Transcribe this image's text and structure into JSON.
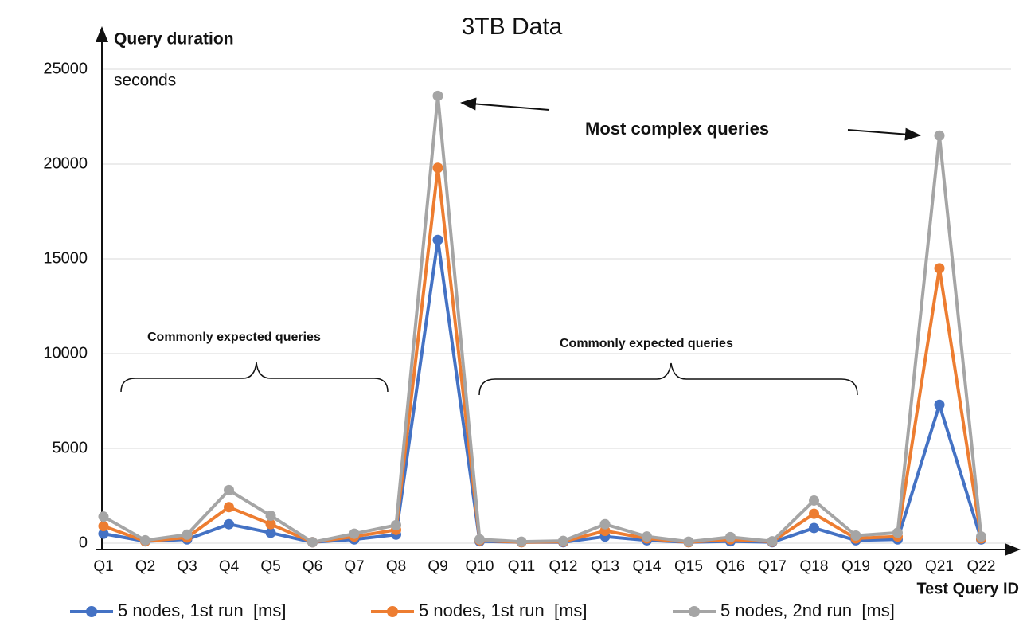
{
  "chart_data": {
    "type": "line",
    "title": "3TB Data",
    "y_label": "Query duration",
    "y_unit_label": "seconds",
    "x_label": "Test Query ID",
    "annotations": [
      "Most complex queries",
      "Commonly expected queries",
      "Commonly expected queries"
    ],
    "categories": [
      "Q1",
      "Q2",
      "Q3",
      "Q4",
      "Q5",
      "Q6",
      "Q7",
      "Q8",
      "Q9",
      "Q10",
      "Q11",
      "Q12",
      "Q13",
      "Q14",
      "Q15",
      "Q16",
      "Q17",
      "Q18",
      "Q19",
      "Q20",
      "Q21",
      "Q22"
    ],
    "series": [
      {
        "name": "5 nodes, 1st run  [ms]",
        "color": "#4472c4",
        "values": [
          500,
          100,
          200,
          1000,
          550,
          50,
          200,
          450,
          16000,
          100,
          50,
          50,
          350,
          150,
          50,
          100,
          50,
          800,
          150,
          200,
          7300,
          200
        ]
      },
      {
        "name": "5 nodes, 1st run  [ms]",
        "color": "#ed7d31",
        "values": [
          900,
          100,
          300,
          1900,
          1000,
          50,
          350,
          700,
          19800,
          150,
          50,
          80,
          650,
          250,
          50,
          200,
          80,
          1550,
          250,
          350,
          14500,
          250
        ]
      },
      {
        "name": "5 nodes, 2nd run  [ms]",
        "color": "#a5a5a5",
        "values": [
          1400,
          150,
          450,
          2800,
          1450,
          50,
          500,
          950,
          23600,
          200,
          80,
          120,
          1000,
          350,
          80,
          320,
          100,
          2250,
          400,
          550,
          21500,
          350
        ]
      }
    ],
    "ylim": [
      0,
      25000
    ],
    "yticks": [
      0,
      5000,
      10000,
      15000,
      20000,
      25000
    ],
    "grid": true,
    "legend": "bottom"
  }
}
